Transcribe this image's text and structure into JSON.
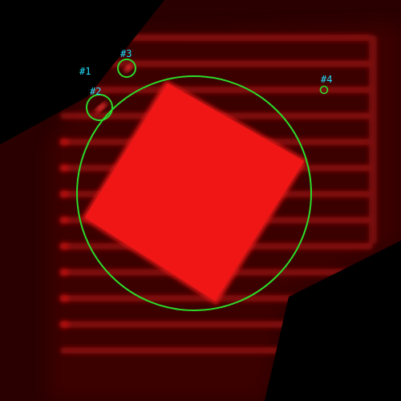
{
  "image": {
    "description_free": true,
    "colors": {
      "background": "#000000",
      "fluorescence": "#ff1010",
      "square": "#f21414",
      "circle": "#2bdc2b",
      "label": "#20e0ff"
    }
  },
  "markers": [
    {
      "id": "1",
      "text": "#1"
    },
    {
      "id": "2",
      "text": "#2"
    },
    {
      "id": "3",
      "text": "#3"
    },
    {
      "id": "4",
      "text": "#4"
    }
  ]
}
